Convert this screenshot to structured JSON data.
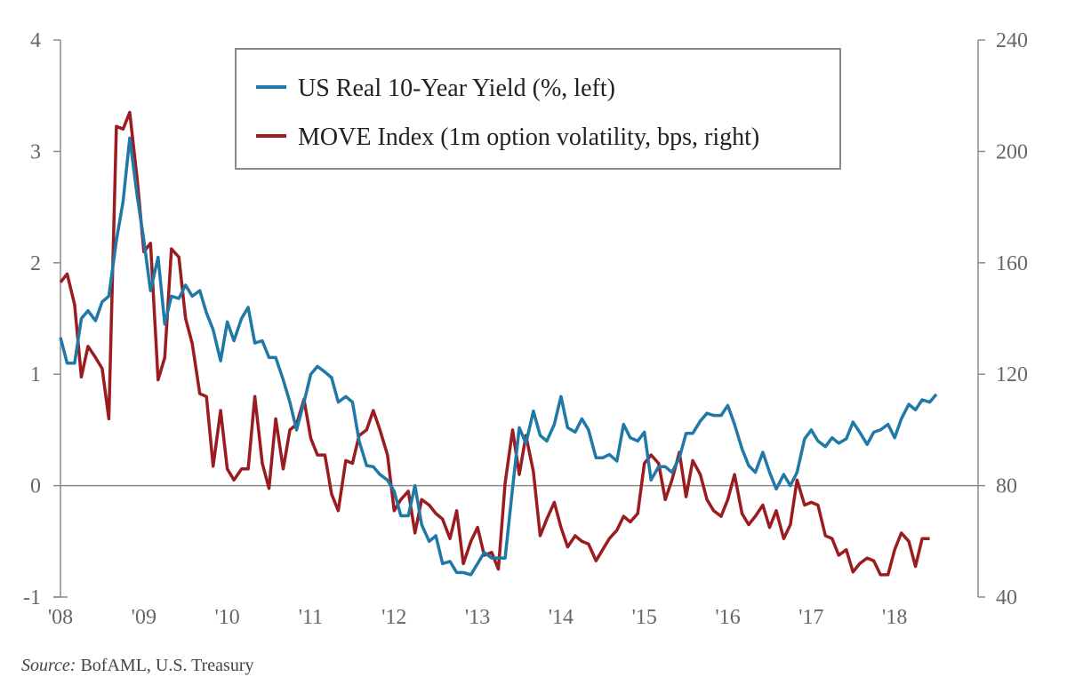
{
  "chart_data": {
    "type": "line",
    "title": "",
    "xlabel": "",
    "ylabel_left": "",
    "ylabel_right": "",
    "x_ticks": [
      "'08",
      "'09",
      "'10",
      "'11",
      "'12",
      "'13",
      "'14",
      "'15",
      "'16",
      "'17",
      "'18"
    ],
    "x_range": [
      2008.0,
      2019.0
    ],
    "y_left": {
      "ticks": [
        "4",
        "3",
        "2",
        "1",
        "0",
        "-1"
      ],
      "range": [
        -1,
        4
      ]
    },
    "y_right": {
      "ticks": [
        "240",
        "200",
        "160",
        "120",
        "80",
        "40"
      ],
      "range": [
        40,
        240
      ]
    },
    "legend_position": "top-center",
    "series": [
      {
        "name": "US Real 10-Year Yield (%, left)",
        "axis": "left",
        "color": "#1f78a6",
        "points": [
          [
            2008.0,
            1.33
          ],
          [
            2008.08,
            1.1
          ],
          [
            2008.17,
            1.1
          ],
          [
            2008.25,
            1.5
          ],
          [
            2008.33,
            1.57
          ],
          [
            2008.42,
            1.48
          ],
          [
            2008.5,
            1.65
          ],
          [
            2008.58,
            1.7
          ],
          [
            2008.67,
            2.2
          ],
          [
            2008.75,
            2.55
          ],
          [
            2008.83,
            3.12
          ],
          [
            2008.92,
            2.6
          ],
          [
            2009.0,
            2.2
          ],
          [
            2009.08,
            1.75
          ],
          [
            2009.17,
            2.05
          ],
          [
            2009.25,
            1.45
          ],
          [
            2009.33,
            1.7
          ],
          [
            2009.42,
            1.68
          ],
          [
            2009.5,
            1.8
          ],
          [
            2009.58,
            1.7
          ],
          [
            2009.67,
            1.75
          ],
          [
            2009.75,
            1.55
          ],
          [
            2009.83,
            1.4
          ],
          [
            2009.92,
            1.12
          ],
          [
            2010.0,
            1.47
          ],
          [
            2010.08,
            1.3
          ],
          [
            2010.17,
            1.5
          ],
          [
            2010.25,
            1.6
          ],
          [
            2010.33,
            1.28
          ],
          [
            2010.42,
            1.3
          ],
          [
            2010.5,
            1.15
          ],
          [
            2010.58,
            1.15
          ],
          [
            2010.67,
            0.95
          ],
          [
            2010.75,
            0.75
          ],
          [
            2010.83,
            0.5
          ],
          [
            2010.92,
            0.75
          ],
          [
            2011.0,
            1.0
          ],
          [
            2011.08,
            1.07
          ],
          [
            2011.17,
            1.02
          ],
          [
            2011.25,
            0.97
          ],
          [
            2011.33,
            0.75
          ],
          [
            2011.42,
            0.8
          ],
          [
            2011.5,
            0.75
          ],
          [
            2011.58,
            0.4
          ],
          [
            2011.67,
            0.18
          ],
          [
            2011.75,
            0.17
          ],
          [
            2011.83,
            0.1
          ],
          [
            2011.92,
            0.05
          ],
          [
            2012.0,
            -0.05
          ],
          [
            2012.08,
            -0.27
          ],
          [
            2012.17,
            -0.27
          ],
          [
            2012.25,
            0.0
          ],
          [
            2012.33,
            -0.35
          ],
          [
            2012.42,
            -0.5
          ],
          [
            2012.5,
            -0.45
          ],
          [
            2012.58,
            -0.7
          ],
          [
            2012.67,
            -0.68
          ],
          [
            2012.75,
            -0.78
          ],
          [
            2012.83,
            -0.78
          ],
          [
            2012.92,
            -0.8
          ],
          [
            2013.0,
            -0.7
          ],
          [
            2013.08,
            -0.6
          ],
          [
            2013.17,
            -0.65
          ],
          [
            2013.25,
            -0.65
          ],
          [
            2013.33,
            -0.65
          ],
          [
            2013.42,
            -0.02
          ],
          [
            2013.5,
            0.52
          ],
          [
            2013.58,
            0.38
          ],
          [
            2013.67,
            0.67
          ],
          [
            2013.75,
            0.45
          ],
          [
            2013.83,
            0.4
          ],
          [
            2013.92,
            0.55
          ],
          [
            2014.0,
            0.8
          ],
          [
            2014.08,
            0.52
          ],
          [
            2014.17,
            0.48
          ],
          [
            2014.25,
            0.6
          ],
          [
            2014.33,
            0.5
          ],
          [
            2014.42,
            0.25
          ],
          [
            2014.5,
            0.25
          ],
          [
            2014.58,
            0.28
          ],
          [
            2014.67,
            0.22
          ],
          [
            2014.75,
            0.55
          ],
          [
            2014.83,
            0.43
          ],
          [
            2014.92,
            0.4
          ],
          [
            2015.0,
            0.48
          ],
          [
            2015.08,
            0.05
          ],
          [
            2015.17,
            0.17
          ],
          [
            2015.25,
            0.17
          ],
          [
            2015.33,
            0.12
          ],
          [
            2015.42,
            0.25
          ],
          [
            2015.5,
            0.47
          ],
          [
            2015.58,
            0.47
          ],
          [
            2015.67,
            0.58
          ],
          [
            2015.75,
            0.65
          ],
          [
            2015.83,
            0.63
          ],
          [
            2015.92,
            0.63
          ],
          [
            2016.0,
            0.72
          ],
          [
            2016.08,
            0.55
          ],
          [
            2016.17,
            0.33
          ],
          [
            2016.25,
            0.18
          ],
          [
            2016.33,
            0.12
          ],
          [
            2016.42,
            0.3
          ],
          [
            2016.5,
            0.12
          ],
          [
            2016.58,
            -0.03
          ],
          [
            2016.67,
            0.1
          ],
          [
            2016.75,
            0.0
          ],
          [
            2016.83,
            0.12
          ],
          [
            2016.92,
            0.42
          ],
          [
            2017.0,
            0.5
          ],
          [
            2017.08,
            0.4
          ],
          [
            2017.17,
            0.35
          ],
          [
            2017.25,
            0.43
          ],
          [
            2017.33,
            0.38
          ],
          [
            2017.42,
            0.42
          ],
          [
            2017.5,
            0.57
          ],
          [
            2017.58,
            0.48
          ],
          [
            2017.67,
            0.37
          ],
          [
            2017.75,
            0.48
          ],
          [
            2017.83,
            0.5
          ],
          [
            2017.92,
            0.55
          ],
          [
            2018.0,
            0.43
          ],
          [
            2018.08,
            0.6
          ],
          [
            2018.17,
            0.73
          ],
          [
            2018.25,
            0.68
          ],
          [
            2018.33,
            0.77
          ],
          [
            2018.42,
            0.75
          ],
          [
            2018.5,
            0.82
          ]
        ]
      },
      {
        "name": "MOVE Index (1m option volatility, bps, right)",
        "axis": "right",
        "color": "#9b1c20",
        "points": [
          [
            2008.0,
            153
          ],
          [
            2008.08,
            156
          ],
          [
            2008.17,
            145
          ],
          [
            2008.25,
            119
          ],
          [
            2008.33,
            130
          ],
          [
            2008.42,
            126
          ],
          [
            2008.5,
            122
          ],
          [
            2008.58,
            104
          ],
          [
            2008.67,
            209
          ],
          [
            2008.75,
            208
          ],
          [
            2008.83,
            214
          ],
          [
            2008.92,
            190
          ],
          [
            2009.0,
            164
          ],
          [
            2009.08,
            167
          ],
          [
            2009.17,
            118
          ],
          [
            2009.25,
            126
          ],
          [
            2009.33,
            165
          ],
          [
            2009.42,
            162
          ],
          [
            2009.5,
            140
          ],
          [
            2009.58,
            131
          ],
          [
            2009.67,
            113
          ],
          [
            2009.75,
            112
          ],
          [
            2009.83,
            87
          ],
          [
            2009.92,
            107
          ],
          [
            2010.0,
            86
          ],
          [
            2010.08,
            82
          ],
          [
            2010.17,
            86
          ],
          [
            2010.25,
            86
          ],
          [
            2010.33,
            112
          ],
          [
            2010.42,
            88
          ],
          [
            2010.5,
            79
          ],
          [
            2010.58,
            104
          ],
          [
            2010.67,
            86
          ],
          [
            2010.75,
            100
          ],
          [
            2010.83,
            102
          ],
          [
            2010.92,
            111
          ],
          [
            2011.0,
            97
          ],
          [
            2011.08,
            91
          ],
          [
            2011.17,
            91
          ],
          [
            2011.25,
            77
          ],
          [
            2011.33,
            71
          ],
          [
            2011.42,
            89
          ],
          [
            2011.5,
            88
          ],
          [
            2011.58,
            98
          ],
          [
            2011.67,
            100
          ],
          [
            2011.75,
            107
          ],
          [
            2011.83,
            100
          ],
          [
            2011.92,
            91
          ],
          [
            2012.0,
            71
          ],
          [
            2012.08,
            75
          ],
          [
            2012.17,
            78
          ],
          [
            2012.25,
            63
          ],
          [
            2012.33,
            75
          ],
          [
            2012.42,
            73
          ],
          [
            2012.5,
            70
          ],
          [
            2012.58,
            68
          ],
          [
            2012.67,
            61
          ],
          [
            2012.75,
            71
          ],
          [
            2012.83,
            52
          ],
          [
            2012.92,
            60
          ],
          [
            2013.0,
            65
          ],
          [
            2013.08,
            55
          ],
          [
            2013.17,
            56
          ],
          [
            2013.25,
            50
          ],
          [
            2013.33,
            81
          ],
          [
            2013.42,
            100
          ],
          [
            2013.5,
            84
          ],
          [
            2013.58,
            98
          ],
          [
            2013.67,
            85
          ],
          [
            2013.75,
            62
          ],
          [
            2013.83,
            68
          ],
          [
            2013.92,
            74
          ],
          [
            2014.0,
            65
          ],
          [
            2014.08,
            58
          ],
          [
            2014.17,
            62
          ],
          [
            2014.25,
            60
          ],
          [
            2014.33,
            59
          ],
          [
            2014.42,
            53
          ],
          [
            2014.5,
            57
          ],
          [
            2014.58,
            61
          ],
          [
            2014.67,
            64
          ],
          [
            2014.75,
            69
          ],
          [
            2014.83,
            67
          ],
          [
            2014.92,
            70
          ],
          [
            2015.0,
            88
          ],
          [
            2015.08,
            91
          ],
          [
            2015.17,
            88
          ],
          [
            2015.25,
            75
          ],
          [
            2015.33,
            82
          ],
          [
            2015.42,
            92
          ],
          [
            2015.5,
            76
          ],
          [
            2015.58,
            89
          ],
          [
            2015.67,
            84
          ],
          [
            2015.75,
            75
          ],
          [
            2015.83,
            71
          ],
          [
            2015.92,
            69
          ],
          [
            2016.0,
            75
          ],
          [
            2016.08,
            84
          ],
          [
            2016.17,
            70
          ],
          [
            2016.25,
            66
          ],
          [
            2016.33,
            69
          ],
          [
            2016.42,
            73
          ],
          [
            2016.5,
            65
          ],
          [
            2016.58,
            71
          ],
          [
            2016.67,
            61
          ],
          [
            2016.75,
            66
          ],
          [
            2016.83,
            82
          ],
          [
            2016.92,
            73
          ],
          [
            2017.0,
            74
          ],
          [
            2017.08,
            73
          ],
          [
            2017.17,
            62
          ],
          [
            2017.25,
            61
          ],
          [
            2017.33,
            55
          ],
          [
            2017.42,
            57
          ],
          [
            2017.5,
            49
          ],
          [
            2017.58,
            52
          ],
          [
            2017.67,
            54
          ],
          [
            2017.75,
            53
          ],
          [
            2017.83,
            48
          ],
          [
            2017.92,
            48
          ],
          [
            2018.0,
            57
          ],
          [
            2018.08,
            63
          ],
          [
            2018.17,
            60
          ],
          [
            2018.25,
            51
          ],
          [
            2018.33,
            61
          ],
          [
            2018.42,
            61
          ]
        ]
      }
    ]
  },
  "source": {
    "label": "Source:",
    "text": "BofAML, U.S. Treasury"
  }
}
